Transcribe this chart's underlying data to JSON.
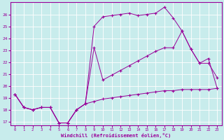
{
  "xlabel": "Windchill (Refroidissement éolien,°C)",
  "bg_color": "#c8ecec",
  "grid_color": "#ffffff",
  "line_color": "#990099",
  "xlim": [
    -0.5,
    23.5
  ],
  "ylim": [
    16.7,
    27.0
  ],
  "yticks": [
    17,
    18,
    19,
    20,
    21,
    22,
    23,
    24,
    25,
    26
  ],
  "xticks": [
    0,
    1,
    2,
    3,
    4,
    5,
    6,
    7,
    8,
    9,
    10,
    11,
    12,
    13,
    14,
    15,
    16,
    17,
    18,
    19,
    20,
    21,
    22,
    23
  ],
  "line1_x": [
    0,
    1,
    2,
    3,
    4,
    5,
    6,
    7,
    8,
    9,
    10,
    11,
    12,
    13,
    14,
    15,
    16,
    17,
    18,
    19,
    20,
    21,
    22,
    23
  ],
  "line1_y": [
    19.3,
    18.2,
    18.0,
    18.2,
    18.2,
    16.9,
    16.9,
    18.0,
    18.5,
    25.0,
    25.8,
    25.9,
    26.0,
    26.1,
    25.9,
    26.0,
    26.1,
    26.6,
    25.7,
    24.6,
    23.1,
    21.9,
    22.3,
    19.8
  ],
  "line2_x": [
    0,
    1,
    2,
    3,
    4,
    5,
    6,
    7,
    8,
    9,
    10,
    11,
    12,
    13,
    14,
    15,
    16,
    17,
    18,
    19,
    20,
    21,
    22,
    23
  ],
  "line2_y": [
    19.3,
    18.2,
    18.0,
    18.2,
    18.2,
    16.9,
    16.9,
    18.0,
    18.5,
    23.2,
    20.5,
    20.9,
    21.3,
    21.7,
    22.1,
    22.5,
    22.9,
    23.2,
    23.2,
    24.6,
    23.1,
    21.9,
    21.9,
    20.7
  ],
  "line3_x": [
    0,
    1,
    2,
    3,
    4,
    5,
    6,
    7,
    8,
    9,
    10,
    11,
    12,
    13,
    14,
    15,
    16,
    17,
    18,
    19,
    20,
    21,
    22,
    23
  ],
  "line3_y": [
    19.3,
    18.2,
    18.0,
    18.2,
    18.2,
    16.9,
    16.9,
    18.0,
    18.5,
    18.7,
    18.9,
    19.0,
    19.1,
    19.2,
    19.3,
    19.4,
    19.5,
    19.6,
    19.6,
    19.7,
    19.7,
    19.7,
    19.7,
    19.8
  ]
}
